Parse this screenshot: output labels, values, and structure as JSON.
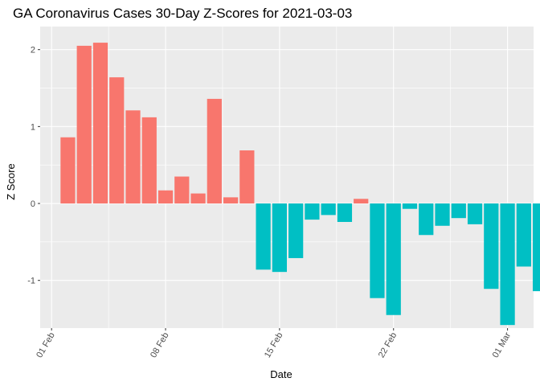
{
  "chart_data": {
    "type": "bar",
    "title": "GA Coronavirus Cases 30-Day Z-Scores for 2021-03-03",
    "xlabel": "Date",
    "ylabel": "Z Score",
    "x_ticks": [
      {
        "label": "01 Feb",
        "day": 1
      },
      {
        "label": "08 Feb",
        "day": 8
      },
      {
        "label": "15 Feb",
        "day": 15
      },
      {
        "label": "22 Feb",
        "day": 22
      },
      {
        "label": "01 Mar",
        "day": 29
      }
    ],
    "y_ticks": [
      -1,
      0,
      1,
      2
    ],
    "ylim": [
      -1.62,
      2.3
    ],
    "xlim": [
      0.3,
      30.6
    ],
    "grid": true,
    "positive_color": "#F8766D",
    "negative_color": "#00BFC4",
    "panel_color": "#EBEBEB",
    "dates": [
      "02 Feb",
      "03 Feb",
      "04 Feb",
      "05 Feb",
      "06 Feb",
      "07 Feb",
      "08 Feb",
      "09 Feb",
      "10 Feb",
      "11 Feb",
      "12 Feb",
      "13 Feb",
      "14 Feb",
      "15 Feb",
      "16 Feb",
      "17 Feb",
      "18 Feb",
      "19 Feb",
      "20 Feb",
      "21 Feb",
      "22 Feb",
      "23 Feb",
      "24 Feb",
      "25 Feb",
      "26 Feb",
      "27 Feb",
      "28 Feb",
      "01 Mar",
      "02 Mar",
      "03 Mar"
    ],
    "days": [
      2,
      3,
      4,
      5,
      6,
      7,
      8,
      9,
      10,
      11,
      12,
      13,
      14,
      15,
      16,
      17,
      18,
      19,
      20,
      21,
      22,
      23,
      24,
      25,
      26,
      27,
      28,
      29,
      30,
      31
    ],
    "values": [
      0.86,
      2.05,
      2.09,
      1.64,
      1.21,
      1.12,
      0.17,
      0.35,
      0.13,
      1.36,
      0.08,
      0.69,
      -0.86,
      -0.89,
      -0.71,
      -0.21,
      -0.15,
      -0.24,
      0.06,
      -1.23,
      -1.45,
      -0.07,
      -0.41,
      -0.29,
      -0.19,
      -0.27,
      -1.11,
      -1.58,
      -0.82,
      -1.14
    ]
  }
}
